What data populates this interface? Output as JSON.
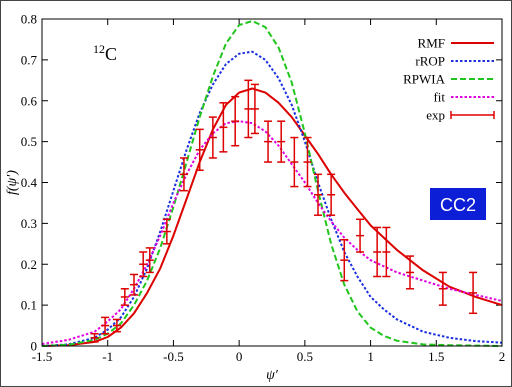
{
  "figure": {
    "nucleus_mass": "12",
    "nucleus_symbol": "C",
    "badge": "CC2",
    "badge_color": "#0d1fd6"
  },
  "chart_data": {
    "type": "line",
    "xlabel": "ψ′",
    "ylabel": "f(ψ′)",
    "xlim": [
      -1.5,
      2
    ],
    "ylim": [
      0,
      0.8
    ],
    "xticks": [
      "-1.5",
      "-1",
      "-0.5",
      "0",
      "0.5",
      "1",
      "1.5",
      "2"
    ],
    "yticks": [
      "0",
      "0.1",
      "0.2",
      "0.3",
      "0.4",
      "0.5",
      "0.6",
      "0.7",
      "0.8"
    ],
    "legend_position": "top-right",
    "series": [
      {
        "name": "RMF",
        "color": "#dd0000",
        "style": "solid",
        "x": [
          -1.5,
          -1.3,
          -1.1,
          -1.0,
          -0.9,
          -0.8,
          -0.7,
          -0.6,
          -0.5,
          -0.4,
          -0.3,
          -0.2,
          -0.1,
          0.0,
          0.1,
          0.2,
          0.3,
          0.4,
          0.5,
          0.6,
          0.7,
          0.8,
          0.9,
          1.0,
          1.2,
          1.4,
          1.6,
          1.8,
          2.0
        ],
        "y": [
          0.0,
          0.002,
          0.01,
          0.022,
          0.045,
          0.08,
          0.13,
          0.19,
          0.27,
          0.36,
          0.45,
          0.53,
          0.59,
          0.62,
          0.63,
          0.62,
          0.595,
          0.56,
          0.515,
          0.47,
          0.42,
          0.375,
          0.335,
          0.295,
          0.235,
          0.185,
          0.145,
          0.12,
          0.1
        ]
      },
      {
        "name": "rROP",
        "color": "#1a2fe0",
        "style": "dotted",
        "x": [
          -1.5,
          -1.3,
          -1.1,
          -1.0,
          -0.9,
          -0.8,
          -0.7,
          -0.6,
          -0.5,
          -0.4,
          -0.3,
          -0.2,
          -0.1,
          0.0,
          0.1,
          0.2,
          0.3,
          0.4,
          0.5,
          0.6,
          0.7,
          0.8,
          0.9,
          1.0,
          1.1,
          1.2,
          1.4,
          1.6,
          1.8,
          2.0
        ],
        "y": [
          0.0,
          0.004,
          0.02,
          0.04,
          0.07,
          0.12,
          0.19,
          0.28,
          0.38,
          0.48,
          0.57,
          0.64,
          0.69,
          0.715,
          0.72,
          0.7,
          0.655,
          0.59,
          0.5,
          0.4,
          0.31,
          0.23,
          0.17,
          0.12,
          0.09,
          0.065,
          0.035,
          0.02,
          0.012,
          0.008
        ]
      },
      {
        "name": "RPWIA",
        "color": "#22c51e",
        "style": "dashed",
        "x": [
          -1.5,
          -1.3,
          -1.1,
          -1.0,
          -0.9,
          -0.8,
          -0.7,
          -0.6,
          -0.5,
          -0.4,
          -0.3,
          -0.2,
          -0.1,
          0.0,
          0.1,
          0.2,
          0.3,
          0.4,
          0.5,
          0.6,
          0.7,
          0.8,
          0.9,
          1.0,
          1.1,
          1.2,
          1.4,
          1.6,
          1.8,
          2.0
        ],
        "y": [
          0.0,
          0.003,
          0.015,
          0.03,
          0.055,
          0.1,
          0.16,
          0.24,
          0.34,
          0.45,
          0.56,
          0.66,
          0.74,
          0.785,
          0.795,
          0.78,
          0.73,
          0.645,
          0.52,
          0.38,
          0.25,
          0.15,
          0.085,
          0.045,
          0.025,
          0.013,
          0.004,
          0.002,
          0.001,
          0.0
        ]
      },
      {
        "name": "fit",
        "color": "#e000e0",
        "style": "dotted",
        "x": [
          -1.5,
          -1.3,
          -1.1,
          -1.0,
          -0.9,
          -0.8,
          -0.7,
          -0.6,
          -0.5,
          -0.4,
          -0.3,
          -0.2,
          -0.1,
          0.0,
          0.1,
          0.2,
          0.3,
          0.4,
          0.5,
          0.6,
          0.7,
          0.8,
          0.9,
          1.0,
          1.2,
          1.4,
          1.6,
          1.8,
          2.0
        ],
        "y": [
          0.005,
          0.015,
          0.035,
          0.06,
          0.09,
          0.14,
          0.2,
          0.27,
          0.35,
          0.42,
          0.48,
          0.52,
          0.545,
          0.55,
          0.545,
          0.525,
          0.49,
          0.445,
          0.4,
          0.35,
          0.305,
          0.265,
          0.235,
          0.21,
          0.18,
          0.16,
          0.14,
          0.125,
          0.11
        ]
      }
    ],
    "points": {
      "name": "exp",
      "color": "#dd0000",
      "x": [
        -1.1,
        -1.02,
        -0.93,
        -0.87,
        -0.8,
        -0.73,
        -0.68,
        -0.55,
        -0.42,
        -0.3,
        -0.2,
        -0.12,
        -0.03,
        0.07,
        0.12,
        0.22,
        0.32,
        0.42,
        0.52,
        0.6,
        0.7,
        0.8,
        0.92,
        1.05,
        1.12,
        1.3,
        1.55,
        1.78
      ],
      "y": [
        0.02,
        0.05,
        0.05,
        0.12,
        0.15,
        0.2,
        0.21,
        0.28,
        0.42,
        0.48,
        0.51,
        0.535,
        0.55,
        0.58,
        0.58,
        0.5,
        0.5,
        0.45,
        0.45,
        0.37,
        0.37,
        0.21,
        0.27,
        0.23,
        0.23,
        0.18,
        0.14,
        0.13
      ],
      "err": [
        0.01,
        0.02,
        0.015,
        0.02,
        0.025,
        0.03,
        0.03,
        0.03,
        0.04,
        0.05,
        0.05,
        0.06,
        0.06,
        0.07,
        0.06,
        0.05,
        0.05,
        0.06,
        0.06,
        0.05,
        0.05,
        0.05,
        0.04,
        0.06,
        0.06,
        0.04,
        0.04,
        0.05
      ]
    }
  }
}
